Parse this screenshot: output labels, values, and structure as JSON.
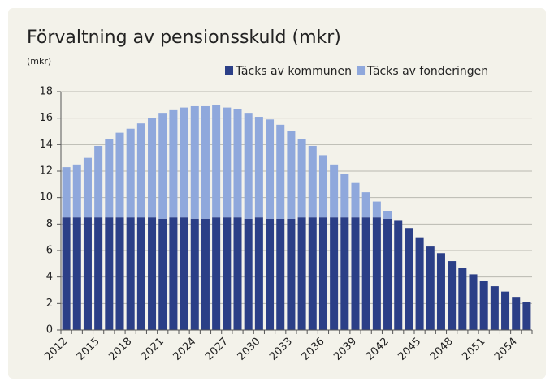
{
  "chart_data": {
    "type": "stacked_bar",
    "title": "Förvaltning av pensionsskuld (mkr)",
    "y_axis_label": "(mkr)",
    "categories": [
      "2012",
      null,
      null,
      "2015",
      null,
      null,
      "2018",
      null,
      null,
      "2021",
      null,
      null,
      "2024",
      null,
      null,
      "2027",
      null,
      null,
      "2030",
      null,
      null,
      "2033",
      null,
      null,
      "2036",
      null,
      null,
      "2039",
      null,
      null,
      "2042",
      null,
      null,
      "2045",
      null,
      null,
      "2048",
      null,
      null,
      "2051",
      null,
      null,
      "2054",
      null
    ],
    "series": [
      {
        "name": "Täcks av kommunen",
        "color": "#2b3f87",
        "values": [
          8.5,
          8.5,
          8.5,
          8.5,
          8.5,
          8.5,
          8.5,
          8.5,
          8.5,
          8.4,
          8.5,
          8.5,
          8.4,
          8.4,
          8.5,
          8.5,
          8.5,
          8.4,
          8.5,
          8.4,
          8.4,
          8.4,
          8.5,
          8.5,
          8.5,
          8.5,
          8.5,
          8.5,
          8.5,
          8.5,
          8.4,
          8.3,
          7.7,
          7.0,
          6.3,
          5.8,
          5.2,
          4.7,
          4.2,
          3.7,
          3.3,
          2.9,
          2.5,
          2.1
        ]
      },
      {
        "name": "Täcks av fonderingen",
        "color": "#8fa8dc",
        "values": [
          3.8,
          4.0,
          4.5,
          5.4,
          5.9,
          6.4,
          6.7,
          7.1,
          7.5,
          8.0,
          8.1,
          8.3,
          8.5,
          8.5,
          8.5,
          8.3,
          8.2,
          8.0,
          7.6,
          7.5,
          7.1,
          6.6,
          5.9,
          5.4,
          4.7,
          4.0,
          3.3,
          2.6,
          1.9,
          1.2,
          0.6,
          null,
          null,
          null,
          null,
          null,
          null,
          null,
          null,
          null,
          null,
          null,
          null,
          null
        ]
      }
    ],
    "ylim": [
      0,
      18
    ],
    "yticks": [
      0,
      2,
      4,
      6,
      8,
      10,
      12,
      14,
      16,
      18
    ],
    "grid": true,
    "legend": "top-right"
  }
}
